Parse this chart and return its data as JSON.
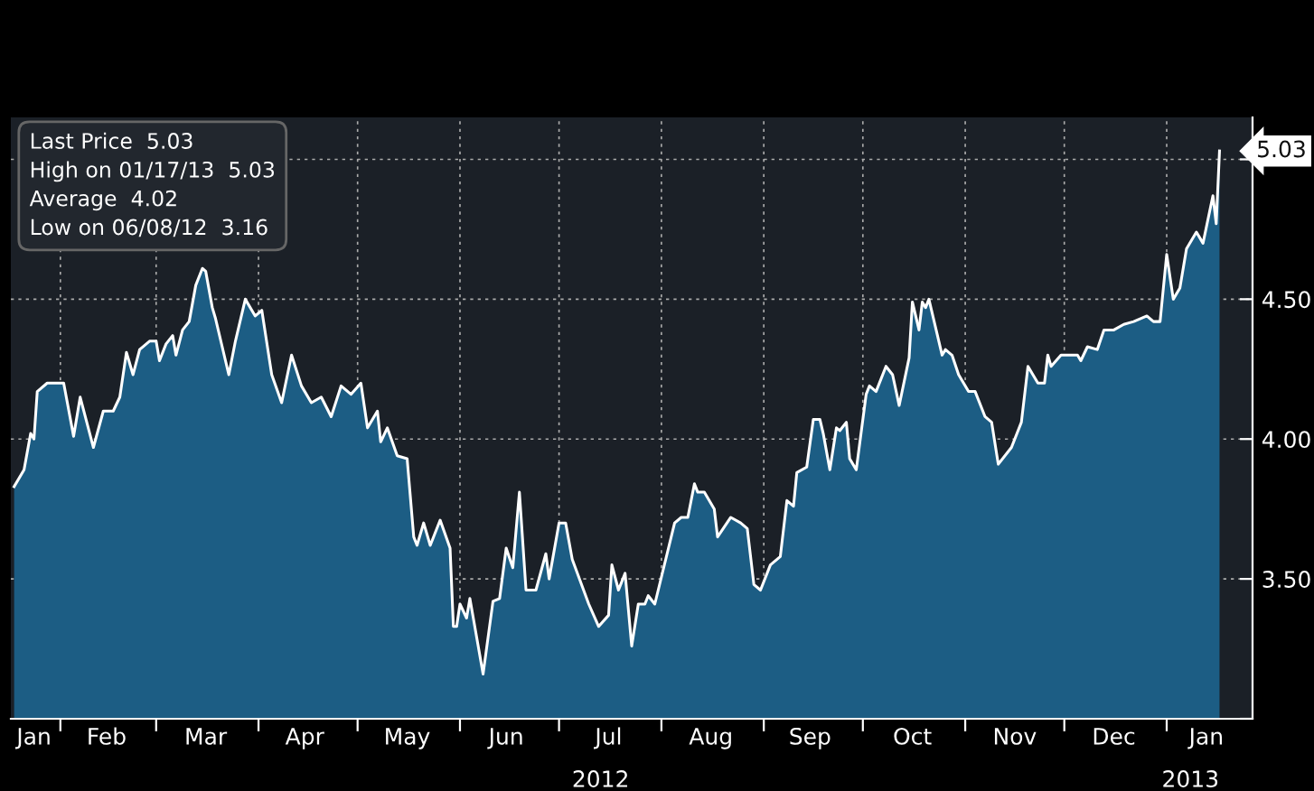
{
  "chart_data": {
    "type": "area",
    "x": [
      "2012-01-18",
      "2012-01-21",
      "2012-01-23",
      "2012-01-24",
      "2012-01-25",
      "2012-01-28",
      "2012-02-02",
      "2012-02-05",
      "2012-02-07",
      "2012-02-11",
      "2012-02-14",
      "2012-02-17",
      "2012-02-19",
      "2012-02-21",
      "2012-02-23",
      "2012-02-25",
      "2012-02-28",
      "2012-03-01",
      "2012-03-02",
      "2012-03-04",
      "2012-03-06",
      "2012-03-07",
      "2012-03-09",
      "2012-03-11",
      "2012-03-13",
      "2012-03-15",
      "2012-03-16",
      "2012-03-18",
      "2012-03-19",
      "2012-03-23",
      "2012-03-25",
      "2012-03-28",
      "2012-03-31",
      "2012-04-02",
      "2012-04-05",
      "2012-04-08",
      "2012-04-11",
      "2012-04-14",
      "2012-04-17",
      "2012-04-20",
      "2012-04-23",
      "2012-04-26",
      "2012-04-29",
      "2012-05-02",
      "2012-05-04",
      "2012-05-07",
      "2012-05-08",
      "2012-05-10",
      "2012-05-13",
      "2012-05-16",
      "2012-05-18",
      "2012-05-19",
      "2012-05-21",
      "2012-05-23",
      "2012-05-26",
      "2012-05-29",
      "2012-05-30",
      "2012-05-31",
      "2012-06-01",
      "2012-06-03",
      "2012-06-04",
      "2012-06-08",
      "2012-06-11",
      "2012-06-13",
      "2012-06-15",
      "2012-06-17",
      "2012-06-19",
      "2012-06-21",
      "2012-06-24",
      "2012-06-27",
      "2012-06-28",
      "2012-07-01",
      "2012-07-03",
      "2012-07-05",
      "2012-07-10",
      "2012-07-13",
      "2012-07-16",
      "2012-07-17",
      "2012-07-19",
      "2012-07-21",
      "2012-07-23",
      "2012-07-25",
      "2012-07-27",
      "2012-07-28",
      "2012-07-30",
      "2012-08-05",
      "2012-08-07",
      "2012-08-09",
      "2012-08-11",
      "2012-08-12",
      "2012-08-14",
      "2012-08-17",
      "2012-08-18",
      "2012-08-22",
      "2012-08-25",
      "2012-08-27",
      "2012-08-29",
      "2012-08-31",
      "2012-09-03",
      "2012-09-06",
      "2012-09-08",
      "2012-09-10",
      "2012-09-11",
      "2012-09-14",
      "2012-09-16",
      "2012-09-18",
      "2012-09-19",
      "2012-09-21",
      "2012-09-23",
      "2012-09-24",
      "2012-09-26",
      "2012-09-27",
      "2012-09-29",
      "2012-10-02",
      "2012-10-03",
      "2012-10-05",
      "2012-10-08",
      "2012-10-10",
      "2012-10-12",
      "2012-10-15",
      "2012-10-16",
      "2012-10-18",
      "2012-10-19",
      "2012-10-20",
      "2012-10-21",
      "2012-10-25",
      "2012-10-26",
      "2012-10-28",
      "2012-10-30",
      "2012-11-02",
      "2012-11-04",
      "2012-11-07",
      "2012-11-09",
      "2012-11-11",
      "2012-11-15",
      "2012-11-18",
      "2012-11-20",
      "2012-11-23",
      "2012-11-25",
      "2012-11-26",
      "2012-11-27",
      "2012-11-30",
      "2012-12-05",
      "2012-12-06",
      "2012-12-08",
      "2012-12-11",
      "2012-12-13",
      "2012-12-16",
      "2012-12-19",
      "2012-12-22",
      "2012-12-26",
      "2012-12-28",
      "2012-12-30",
      "2013-01-01",
      "2013-01-03",
      "2013-01-05",
      "2013-01-07",
      "2013-01-10",
      "2013-01-12",
      "2013-01-15",
      "2013-01-16",
      "2013-01-17"
    ],
    "series": [
      {
        "color": "#1c5d84",
        "values": [
          3.83,
          3.89,
          4.02,
          4.0,
          4.17,
          4.2,
          4.2,
          4.01,
          4.15,
          3.97,
          4.1,
          4.1,
          4.15,
          4.31,
          4.23,
          4.32,
          4.35,
          4.35,
          4.28,
          4.34,
          4.37,
          4.3,
          4.39,
          4.42,
          4.55,
          4.61,
          4.6,
          4.47,
          4.43,
          4.23,
          4.35,
          4.5,
          4.44,
          4.46,
          4.23,
          4.13,
          4.3,
          4.19,
          4.13,
          4.15,
          4.08,
          4.19,
          4.16,
          4.2,
          4.04,
          4.1,
          3.99,
          4.04,
          3.94,
          3.93,
          3.65,
          3.62,
          3.7,
          3.62,
          3.71,
          3.61,
          3.33,
          3.33,
          3.41,
          3.36,
          3.43,
          3.16,
          3.42,
          3.43,
          3.61,
          3.54,
          3.81,
          3.46,
          3.46,
          3.59,
          3.5,
          3.7,
          3.7,
          3.57,
          3.41,
          3.33,
          3.37,
          3.55,
          3.46,
          3.52,
          3.26,
          3.41,
          3.41,
          3.44,
          3.41,
          3.7,
          3.72,
          3.72,
          3.84,
          3.81,
          3.81,
          3.75,
          3.65,
          3.72,
          3.7,
          3.68,
          3.48,
          3.46,
          3.55,
          3.58,
          3.78,
          3.76,
          3.88,
          3.9,
          4.07,
          4.07,
          4.02,
          3.89,
          4.04,
          4.03,
          4.06,
          3.93,
          3.89,
          4.16,
          4.19,
          4.17,
          4.26,
          4.23,
          4.12,
          4.29,
          4.49,
          4.39,
          4.49,
          4.47,
          4.5,
          4.3,
          4.32,
          4.3,
          4.23,
          4.17,
          4.17,
          4.08,
          4.06,
          3.91,
          3.97,
          4.06,
          4.26,
          4.2,
          4.2,
          4.3,
          4.26,
          4.3,
          4.3,
          4.28,
          4.33,
          4.32,
          4.39,
          4.39,
          4.41,
          4.42,
          4.44,
          4.42,
          4.42,
          4.66,
          4.5,
          4.54,
          4.68,
          4.74,
          4.7,
          4.87,
          4.77,
          5.03
        ]
      }
    ],
    "xlim": [
      "2012-01-17",
      "2013-01-27"
    ],
    "xticks": [
      {
        "value": "2012-02-01",
        "label": null
      },
      {
        "value": "2012-03-01",
        "label": null
      },
      {
        "value": "2012-04-01",
        "label": null
      },
      {
        "value": "2012-05-01",
        "label": null
      },
      {
        "value": "2012-06-01",
        "label": null
      },
      {
        "value": "2012-07-01",
        "label": null
      },
      {
        "value": "2012-08-01",
        "label": null
      },
      {
        "value": "2012-09-01",
        "label": null
      },
      {
        "value": "2012-10-01",
        "label": null
      },
      {
        "value": "2012-11-01",
        "label": null
      },
      {
        "value": "2012-12-01",
        "label": null
      },
      {
        "value": "2013-01-01",
        "label": null
      },
      {
        "value": "2012-01-24",
        "label": "Jan"
      },
      {
        "value": "2012-02-15",
        "label": "Feb"
      },
      {
        "value": "2012-03-16",
        "label": "Mar"
      },
      {
        "value": "2012-04-15",
        "label": "Apr"
      },
      {
        "value": "2012-05-16",
        "label": "May"
      },
      {
        "value": "2012-06-15",
        "label": "Jun"
      },
      {
        "value": "2012-07-16",
        "label": "Jul"
      },
      {
        "value": "2012-08-16",
        "label": "Aug"
      },
      {
        "value": "2012-09-15",
        "label": "Sep"
      },
      {
        "value": "2012-10-16",
        "label": "Oct"
      },
      {
        "value": "2012-11-16",
        "label": "Nov"
      },
      {
        "value": "2012-12-16",
        "label": "Dec"
      },
      {
        "value": "2013-01-13",
        "label": "Jan"
      }
    ],
    "ylim": [
      3.0,
      5.15
    ],
    "yticks": [
      {
        "value": 3.0,
        "label": null
      },
      {
        "value": 3.5,
        "label": "3.50"
      },
      {
        "value": 4.0,
        "label": "4.00"
      },
      {
        "value": 4.5,
        "label": "4.50"
      },
      {
        "value": 5.0,
        "label": null
      }
    ],
    "grid": true,
    "annotations": [
      "Last Price  5.03",
      "High on 01/17/13  5.03",
      "Average  4.02",
      "Low on 06/08/12  3.16",
      {
        "text": "5.03",
        "x": "2013-01-17",
        "y": 5.03
      },
      "2012",
      "2013"
    ]
  }
}
